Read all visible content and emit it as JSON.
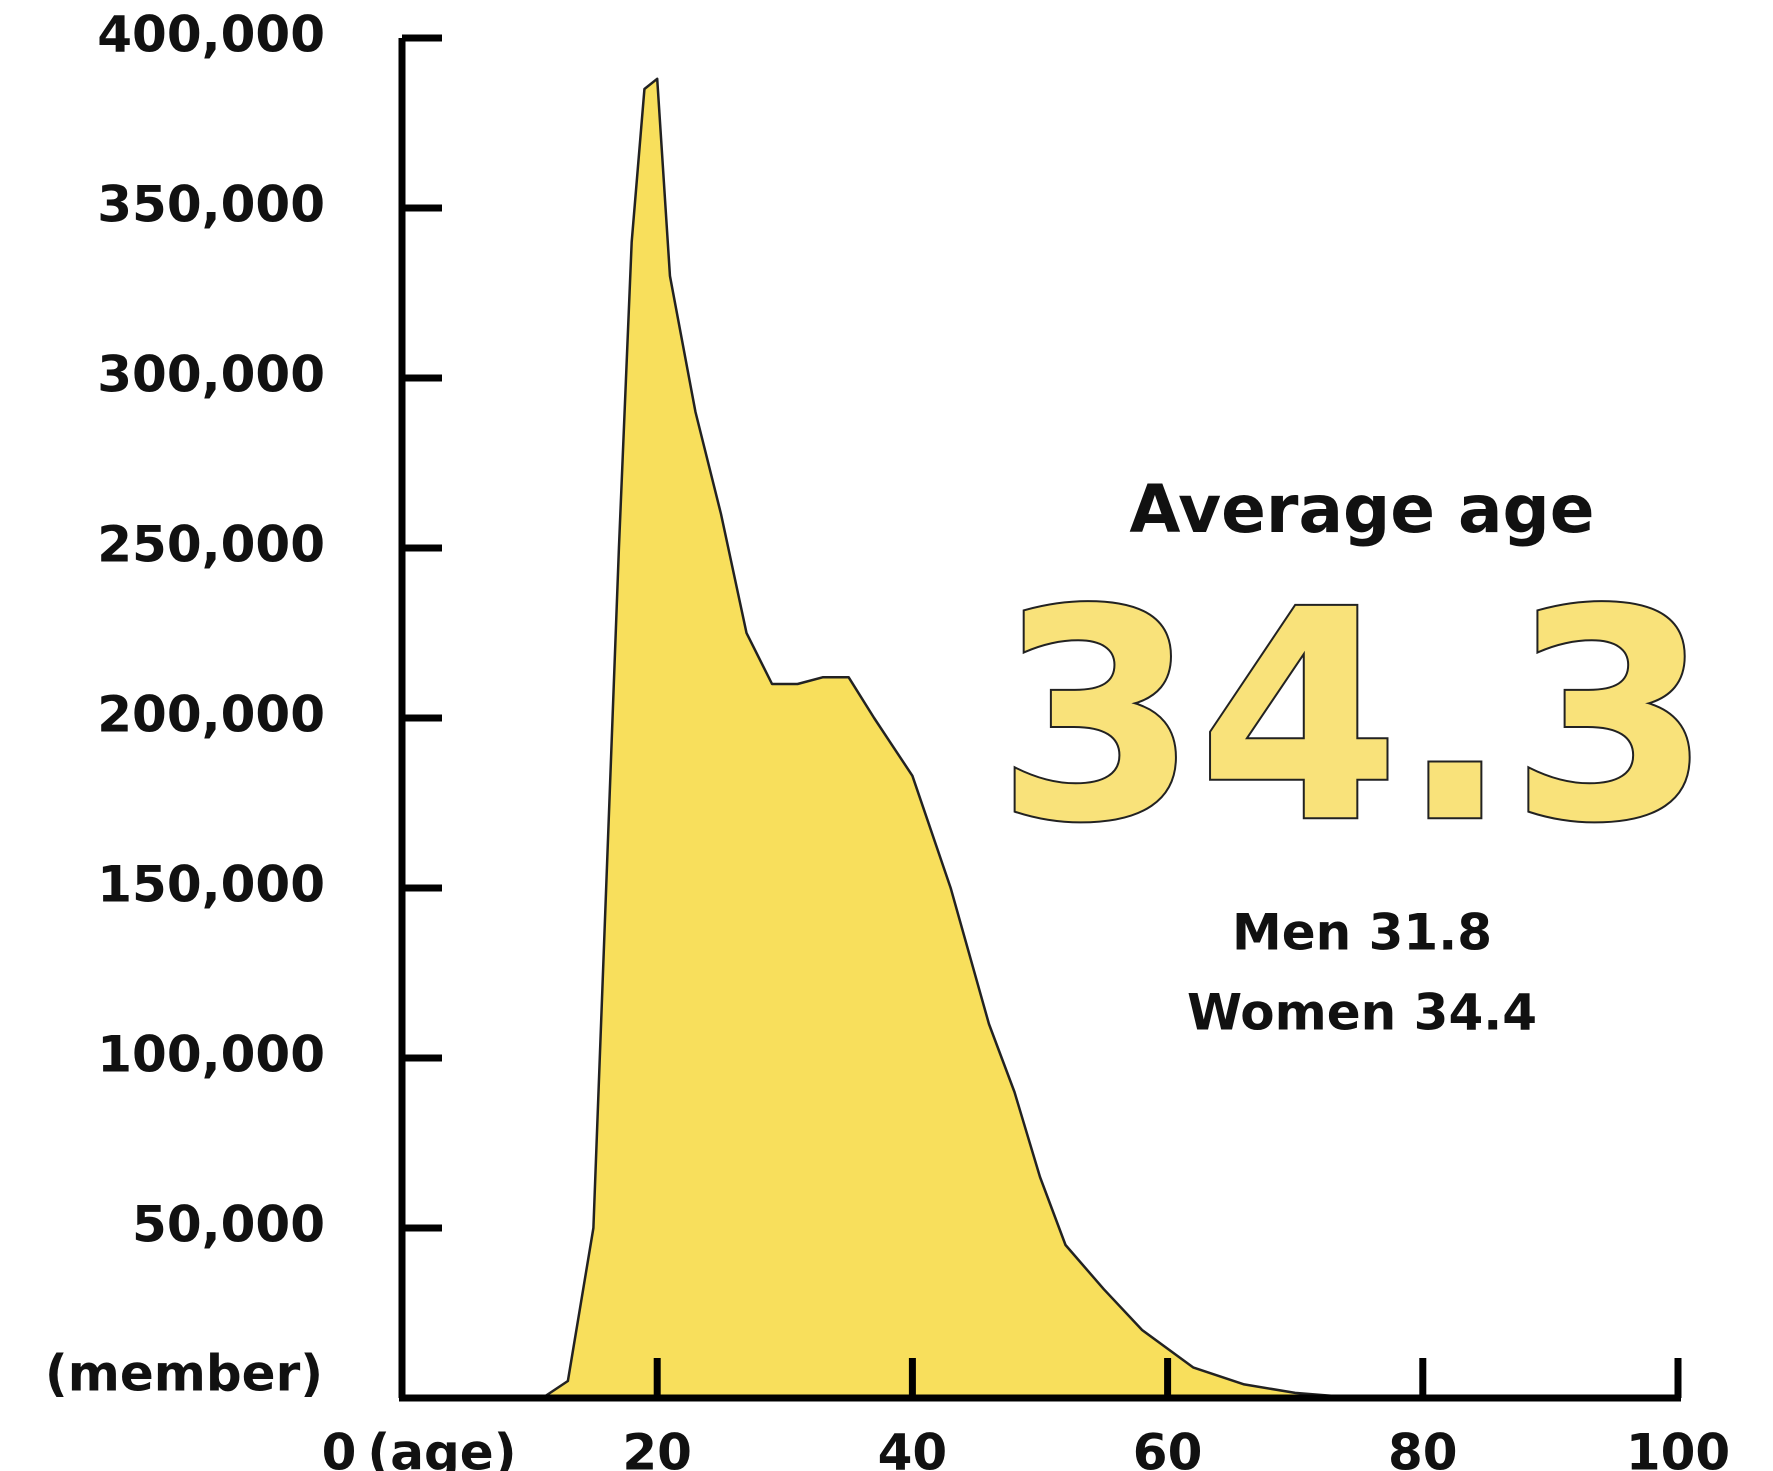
{
  "chart_data": {
    "type": "area",
    "x": [
      11,
      13,
      15,
      16,
      17,
      18,
      19,
      20,
      21,
      23,
      25,
      27,
      29,
      31,
      33,
      35,
      37,
      40,
      43,
      46,
      48,
      50,
      52,
      55,
      58,
      62,
      66,
      70,
      75
    ],
    "values": [
      0,
      5000,
      50000,
      150000,
      250000,
      340000,
      385000,
      388000,
      330000,
      290000,
      260000,
      225000,
      210000,
      210000,
      212000,
      212000,
      200000,
      183000,
      150000,
      110000,
      90000,
      65000,
      45000,
      32000,
      20000,
      9000,
      4000,
      1500,
      0
    ],
    "color": "#f7dc4a",
    "line_color": "#222222",
    "xlim": [
      0,
      100
    ],
    "xticks": [
      0,
      20,
      40,
      60,
      80,
      100
    ],
    "ylim": [
      0,
      400000
    ],
    "yticks": [
      {
        "value": 50000,
        "label": "50,000"
      },
      {
        "value": 100000,
        "label": "100,000"
      },
      {
        "value": 150000,
        "label": "150,000"
      },
      {
        "value": 200000,
        "label": "200,000"
      },
      {
        "value": 250000,
        "label": "250,000"
      },
      {
        "value": 300000,
        "label": "300,000"
      },
      {
        "value": 350000,
        "label": "350,000"
      },
      {
        "value": 400000,
        "label": "400,000"
      }
    ],
    "y_label": "(member)",
    "x_label": "(age)",
    "annotation_title": "Average age",
    "annotation_value": "34.3",
    "annotation_men": "Men 31.8",
    "annotation_women": "Women 34.4"
  }
}
